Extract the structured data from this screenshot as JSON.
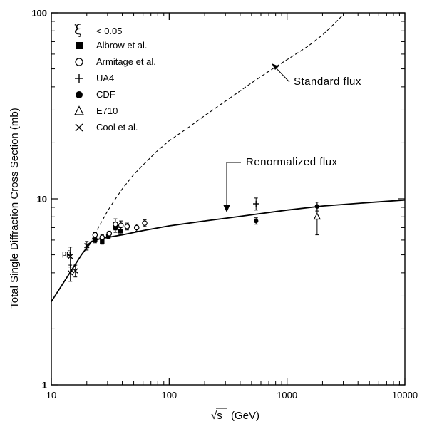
{
  "chart_data": {
    "type": "scatter",
    "xscale": "log",
    "yscale": "log",
    "xlim": [
      10,
      10000
    ],
    "ylim": [
      1,
      100
    ],
    "xlabel_prefix": "√s",
    "xlabel_suffix": "(GeV)",
    "ylabel": "Total Single Diffraction Cross Section (mb)",
    "x_ticks": [
      {
        "value": 10,
        "label": "10"
      },
      {
        "value": 100,
        "label": "100"
      },
      {
        "value": 1000,
        "label": "1000"
      },
      {
        "value": 10000,
        "label": "10000"
      }
    ],
    "y_ticks": [
      {
        "value": 1,
        "label": "1"
      },
      {
        "value": 10,
        "label": "10"
      },
      {
        "value": 100,
        "label": "100"
      }
    ],
    "legend_title": "ξ < 0.05",
    "legend_title_symbol": "ξ",
    "legend_title_text": "< 0.05",
    "legend_position": "top-left",
    "legend": [
      {
        "marker": "filled-square",
        "label": "Albrow et al."
      },
      {
        "marker": "open-circle",
        "label": "Armitage et al."
      },
      {
        "marker": "plus",
        "label": "UA4"
      },
      {
        "marker": "filled-circle",
        "label": "CDF"
      },
      {
        "marker": "open-triangle",
        "label": "E710"
      },
      {
        "marker": "cross",
        "label": "Cool et al."
      }
    ],
    "curves": [
      {
        "name": "Standard flux",
        "style": "dashed",
        "points": [
          [
            10,
            2.8
          ],
          [
            14,
            3.9
          ],
          [
            18,
            5.0
          ],
          [
            22,
            6.0
          ],
          [
            26,
            7.3
          ],
          [
            30,
            8.6
          ],
          [
            35,
            10
          ],
          [
            40,
            11.3
          ],
          [
            50,
            13.5
          ],
          [
            60,
            15.2
          ],
          [
            80,
            18.2
          ],
          [
            100,
            20.5
          ],
          [
            150,
            24.5
          ],
          [
            200,
            28
          ],
          [
            300,
            33.5
          ],
          [
            500,
            42
          ],
          [
            700,
            48.5
          ],
          [
            1000,
            56
          ],
          [
            1500,
            66
          ],
          [
            2000,
            76
          ],
          [
            2500,
            87
          ],
          [
            3000,
            98
          ]
        ]
      },
      {
        "name": "Renormalized flux",
        "style": "solid",
        "points": [
          [
            10,
            2.8
          ],
          [
            14,
            3.9
          ],
          [
            18,
            5.0
          ],
          [
            22,
            5.9
          ],
          [
            26,
            6.1
          ],
          [
            30,
            6.2
          ],
          [
            40,
            6.4
          ],
          [
            60,
            6.75
          ],
          [
            100,
            7.15
          ],
          [
            200,
            7.6
          ],
          [
            300,
            7.85
          ],
          [
            500,
            8.2
          ],
          [
            1000,
            8.7
          ],
          [
            2000,
            9.15
          ],
          [
            5000,
            9.55
          ],
          [
            10000,
            9.85
          ]
        ]
      }
    ],
    "annotations": [
      {
        "text": "Standard flux",
        "arrow_to": [
          840,
          52
        ]
      },
      {
        "text": "Renormalized flux",
        "arrow_to": [
          300,
          7.85
        ]
      },
      {
        "text": "pp̄",
        "at": [
          14.3,
          4.8
        ]
      }
    ],
    "series": [
      {
        "name": "Albrow et al.",
        "marker": "filled-square",
        "points": [
          [
            23.5,
            6.0
          ],
          [
            27,
            5.9
          ],
          [
            30.5,
            6.3
          ],
          [
            35,
            7.0
          ],
          [
            38.5,
            6.7
          ]
        ],
        "errors": [
          0.2,
          0.2,
          0.2,
          0.4,
          0.3
        ]
      },
      {
        "name": "Armitage et al.",
        "marker": "open-circle",
        "points": [
          [
            23.5,
            6.4
          ],
          [
            27,
            6.2
          ],
          [
            31,
            6.5
          ],
          [
            35,
            7.3
          ],
          [
            39,
            7.2
          ],
          [
            44,
            7.1
          ],
          [
            53,
            7.0
          ],
          [
            62,
            7.4
          ]
        ],
        "errors": [
          0.2,
          0.2,
          0.2,
          0.5,
          0.4,
          0.3,
          0.3,
          0.3
        ]
      },
      {
        "name": "UA4",
        "marker": "plus",
        "points": [
          [
            546,
            9.4
          ]
        ],
        "errors": [
          0.7
        ]
      },
      {
        "name": "CDF",
        "marker": "filled-circle",
        "points": [
          [
            546,
            7.6
          ],
          [
            1800,
            9.1
          ]
        ],
        "errors": [
          0.3,
          0.5
        ]
      },
      {
        "name": "E710",
        "marker": "open-triangle",
        "points": [
          [
            1800,
            8.0
          ]
        ],
        "errors": [
          1.6
        ]
      },
      {
        "name": "Cool et al.",
        "marker": "cross",
        "points": [
          [
            14.5,
            4.9
          ],
          [
            14.5,
            4.0
          ],
          [
            16,
            4.1
          ],
          [
            20,
            5.6
          ]
        ],
        "errors": [
          0.6,
          0.4,
          0.3,
          0.3
        ]
      }
    ]
  }
}
